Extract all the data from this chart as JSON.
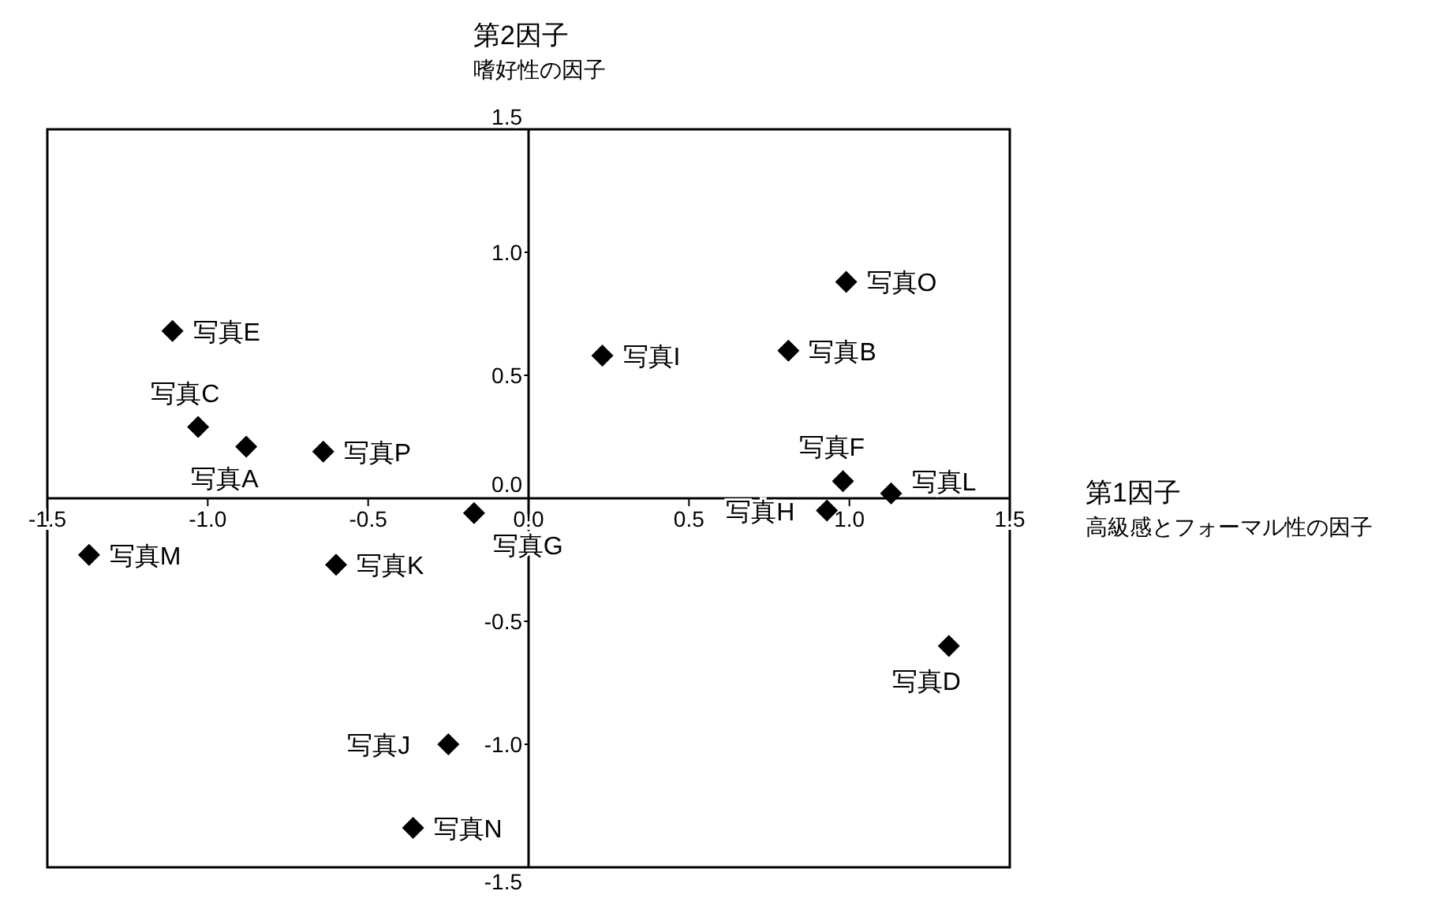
{
  "chart_data": {
    "type": "scatter",
    "xlabel": "第1因子",
    "ylabel": "第2因子",
    "x": [
      -1.11,
      -1.03,
      -0.88,
      -0.64,
      -1.37,
      -0.6,
      -0.17,
      -0.25,
      -0.36,
      0.23,
      0.81,
      0.99,
      0.98,
      0.93,
      1.13,
      1.31
    ],
    "series": [
      {
        "color": "#000000",
        "values": [
          0.68,
          0.29,
          0.21,
          0.19,
          -0.23,
          -0.27,
          -0.06,
          -1.0,
          -1.34,
          0.58,
          0.6,
          0.88,
          0.07,
          -0.05,
          0.02,
          -0.6
        ]
      }
    ],
    "marker": "diamond",
    "grid": false,
    "xlim": [
      -1.5,
      1.5
    ],
    "ylim": [
      -1.5,
      1.5
    ],
    "xticks": [
      -1.5,
      {
        "value": -1,
        "label": "-1.0"
      },
      -0.5,
      {
        "value": 0,
        "label": "0.0"
      },
      0.5,
      {
        "value": 1,
        "label": "1.0"
      },
      1.5
    ],
    "yticks": [
      -1.5,
      {
        "value": -1,
        "label": "-1.0"
      },
      -0.5,
      {
        "value": 0,
        "label": "0.0"
      },
      0.5,
      {
        "value": 1,
        "label": "1.0"
      },
      1.5
    ],
    "annotations": [
      {
        "text": "写真E",
        "x": -1.11,
        "y": 0.68
      },
      {
        "text": "写真C",
        "x": -1.03,
        "y": 0.29
      },
      {
        "text": "写真A",
        "x": -0.88,
        "y": 0.21
      },
      {
        "text": "写真P",
        "x": -0.64,
        "y": 0.19
      },
      {
        "text": "写真M",
        "x": -1.37,
        "y": -0.23
      },
      {
        "text": "写真K",
        "x": -0.6,
        "y": -0.27
      },
      {
        "text": "写真G",
        "x": -0.17,
        "y": -0.06
      },
      {
        "text": "写真J",
        "x": -0.25,
        "y": -1.0
      },
      {
        "text": "写真N",
        "x": -0.36,
        "y": -1.34
      },
      {
        "text": "写真I",
        "x": 0.23,
        "y": 0.58
      },
      {
        "text": "写真B",
        "x": 0.81,
        "y": 0.6
      },
      {
        "text": "写真O",
        "x": 0.99,
        "y": 0.88
      },
      {
        "text": "写真F",
        "x": 0.98,
        "y": 0.07
      },
      {
        "text": "写真H",
        "x": 0.93,
        "y": -0.05
      },
      {
        "text": "写真L",
        "x": 1.13,
        "y": 0.02
      },
      {
        "text": "写真D",
        "x": 1.31,
        "y": -0.6
      },
      "嗜好性の因子",
      "高級感とフォーマル性の因子"
    ]
  }
}
